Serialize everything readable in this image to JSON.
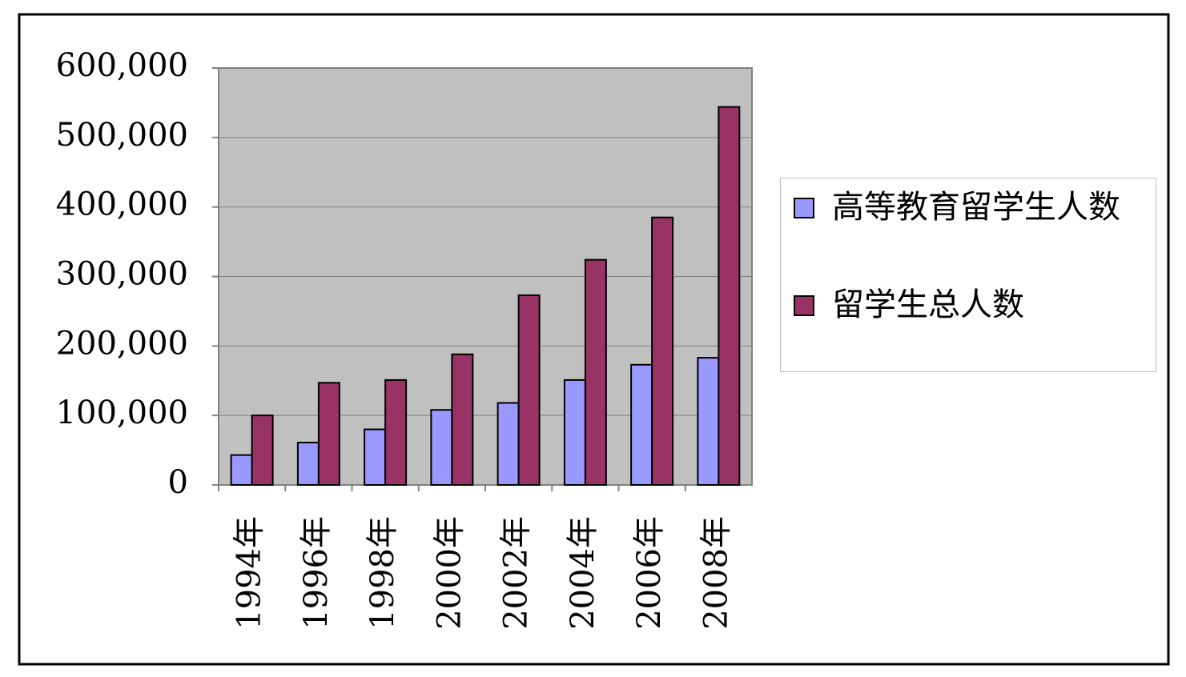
{
  "chart_data": {
    "type": "bar",
    "categories": [
      "1994年",
      "1996年",
      "1998年",
      "2000年",
      "2002年",
      "2004年",
      "2006年",
      "2008年"
    ],
    "series": [
      {
        "name": "高等教育留学生人数",
        "color": "#9999ff",
        "values": [
          43000,
          61000,
          80000,
          108000,
          118000,
          151000,
          173000,
          183000
        ]
      },
      {
        "name": "留学生总人数",
        "color": "#993366",
        "values": [
          100000,
          147000,
          151000,
          188000,
          273000,
          324000,
          385000,
          544000
        ]
      }
    ],
    "ylim": [
      0,
      600000
    ],
    "yticks": [
      0,
      {
        "value": 100000,
        "label": "100,000"
      },
      {
        "value": 200000,
        "label": "200,000"
      },
      {
        "value": 300000,
        "label": "300,000"
      },
      {
        "value": 400000,
        "label": "400,000"
      },
      {
        "value": 500000,
        "label": "500,000"
      },
      {
        "value": 600000,
        "label": "600,000"
      }
    ],
    "grid": true,
    "legend": "right",
    "plot_background": "#c0c0c0"
  }
}
